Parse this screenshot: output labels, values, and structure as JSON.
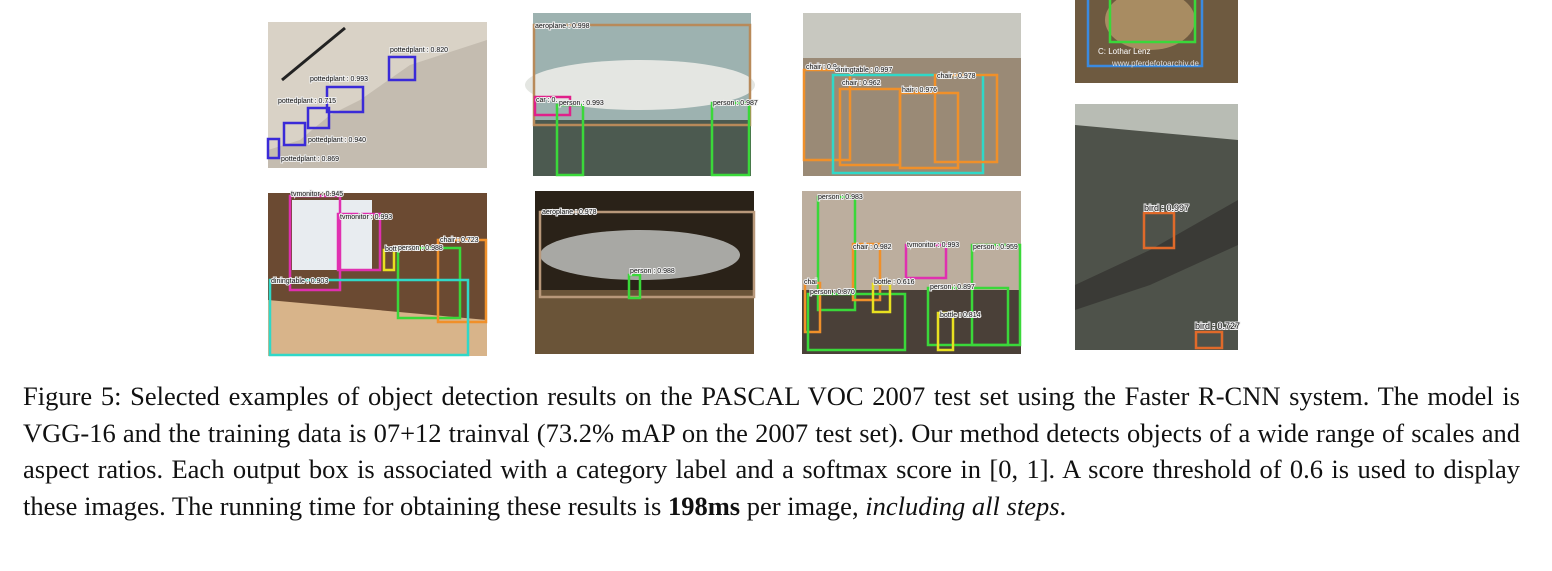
{
  "figure": {
    "panels": [
      {
        "detections": [
          "pottedplant : 0.820",
          "pottedplant : 0.993",
          "pottedplant : 0.715",
          "pottedplant : 0.940",
          "pottedplant : 0.869"
        ]
      },
      {
        "detections": [
          "aeroplane : 0.998",
          "car : 0.",
          "person : 0.993",
          "person : 0.987"
        ]
      },
      {
        "detections": [
          "chair : 0.9",
          "diningtable : 0.997",
          "chair : 0.962",
          "hair : 0.976",
          "chair : 0.978"
        ]
      },
      {
        "detections": [],
        "watermark": [
          "C:  Lothar Lenz",
          "www.pferdefotoarchiv.de"
        ]
      },
      {
        "detections": [
          "tvmonitor : 0.945",
          "tvmonitor : 0.993",
          "bott",
          "person : 0.988",
          "chair : 0.723",
          "diningtable : 0.903"
        ]
      },
      {
        "detections": [
          "aeroplane : 0.978",
          "person : 0.988"
        ]
      },
      {
        "detections": [
          "person : 0.983",
          "chair : 0.982",
          "tvmonitor : 0.993",
          "person : 0.959",
          "chai",
          "person : 0.870",
          "bottle : 0.616",
          "person : 0.897",
          "bottle : 0.814"
        ]
      },
      {
        "detections": [
          "bird : 0.997",
          "bird : 0.727"
        ]
      }
    ],
    "caption": {
      "label": "Figure 5:",
      "text": "Selected examples of object detection results on the PASCAL VOC 2007 test set using the Faster R-CNN system. The model is VGG-16 and the training data is 07+12 trainval (73.2% mAP on the 2007 test set). Our method detects objects of a wide range of scales and aspect ratios. Each output box is associated with a category label and a softmax score in [0, 1]. A score threshold of 0.6 is used to display these images. The running time for obtaining these results is",
      "bold": "198ms",
      "middle": "per image,",
      "italic": "including all steps",
      "end": "."
    }
  }
}
